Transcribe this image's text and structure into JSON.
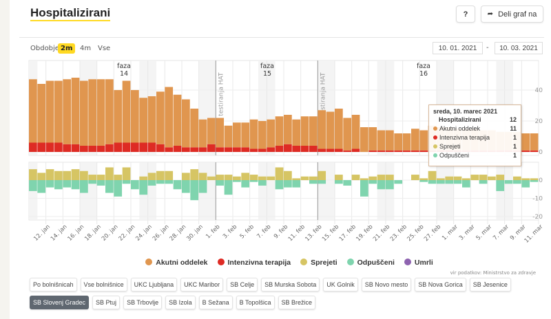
{
  "header": {
    "title": "Hospitalizirani",
    "help_label": "?",
    "share_label": "Deli graf na",
    "share_icon": "share-arrow-icon"
  },
  "period": {
    "label": "Obdobje",
    "options": [
      "2m",
      "4m",
      "Vse"
    ],
    "selected": "2m"
  },
  "date_range": {
    "from": "10. 01. 2021",
    "separator": "-",
    "to": "10. 03. 2021"
  },
  "colors": {
    "acute": "#e0964f",
    "icu": "#de2b24",
    "admitted": "#d6c564",
    "discharged": "#7fd4ae",
    "deceased": "#8e63b0",
    "accent": "#ffd922"
  },
  "chart_data": [
    {
      "type": "bar",
      "stacked": true,
      "x_start": "2021-01-10",
      "x_end": "2021-03-10",
      "y_ticks": [
        0,
        20,
        40
      ],
      "ylim": [
        0,
        50
      ],
      "axis_side": "right",
      "grid": true,
      "series": [
        {
          "name": "Akutni oddelek",
          "values": [
            41,
            38,
            40,
            40,
            42,
            43,
            42,
            43,
            43,
            42,
            34,
            40,
            34,
            29,
            30,
            34,
            39,
            33,
            31,
            25,
            18,
            17,
            19,
            14,
            16,
            16,
            19,
            18,
            18,
            19,
            19,
            17,
            19,
            19,
            25,
            24,
            26,
            21,
            22,
            16,
            15,
            13,
            13,
            11,
            11,
            14,
            13,
            16,
            15,
            15,
            14,
            14,
            14,
            13,
            13,
            12,
            12,
            12,
            11,
            11
          ]
        },
        {
          "name": "Intenzivna terapija",
          "values": [
            6,
            6,
            6,
            6,
            5,
            5,
            4,
            4,
            4,
            5,
            6,
            6,
            6,
            6,
            6,
            5,
            3,
            4,
            3,
            3,
            3,
            5,
            3,
            3,
            3,
            3,
            2,
            2,
            3,
            4,
            5,
            4,
            4,
            4,
            2,
            2,
            2,
            1,
            2,
            0,
            1,
            1,
            1,
            1,
            1,
            1,
            1,
            1,
            1,
            1,
            1,
            1,
            1,
            1,
            1,
            1,
            1,
            1,
            1,
            1
          ]
        }
      ]
    },
    {
      "type": "bar",
      "y_ticks": [
        0,
        -10,
        -20
      ],
      "ylim": [
        -20,
        10
      ],
      "axis_side": "right",
      "grid": true,
      "series": [
        {
          "name": "Sprejeti",
          "direction": "up",
          "values": [
            6,
            4,
            6,
            5,
            5,
            6,
            5,
            3,
            3,
            7,
            3,
            7,
            0,
            2,
            4,
            5,
            5,
            0,
            4,
            6,
            4,
            2,
            3,
            3,
            2,
            4,
            3,
            2,
            2,
            7,
            5,
            1,
            2,
            2,
            5,
            0,
            3,
            0,
            3,
            1,
            2,
            3,
            3,
            0,
            0,
            3,
            1,
            5,
            1,
            2,
            2,
            1,
            3,
            3,
            2,
            3,
            0,
            2,
            1,
            1
          ]
        },
        {
          "name": "Odpuščeni",
          "direction": "down",
          "values": [
            6,
            7,
            4,
            5,
            4,
            5,
            7,
            2,
            3,
            7,
            9,
            2,
            5,
            8,
            3,
            2,
            2,
            5,
            7,
            11,
            7,
            0,
            3,
            8,
            1,
            4,
            1,
            3,
            0,
            5,
            4,
            4,
            0,
            2,
            2,
            0,
            2,
            3,
            0,
            9,
            2,
            5,
            5,
            2,
            0,
            0,
            1,
            2,
            2,
            2,
            2,
            4,
            0,
            2,
            0,
            6,
            2,
            2,
            4,
            1
          ]
        }
      ]
    }
  ],
  "x_ticks": [
    "12. jan",
    "14. jan",
    "16. jan",
    "18. jan",
    "20. jan",
    "22. jan",
    "24. jan",
    "26. jan",
    "28. jan",
    "30. jan",
    "1. feb",
    "3. feb",
    "5. feb",
    "7. feb",
    "9. feb",
    "11. feb",
    "13. feb",
    "15. feb",
    "17. feb",
    "19. feb",
    "21. feb",
    "23. feb",
    "25. feb",
    "27. feb",
    "1. mar",
    "3. mar",
    "5. mar",
    "7. mar",
    "9. mar",
    "11. mar"
  ],
  "phases": [
    {
      "label": "faza",
      "number": "14"
    },
    {
      "label": "faza",
      "number": "15"
    },
    {
      "label": "faza",
      "number": "16"
    }
  ],
  "annotations": [
    {
      "text": "em testiranja HAT",
      "date": "1. feb"
    },
    {
      "text": "em testiranja HAT",
      "date": "13. feb"
    }
  ],
  "tooltip": {
    "date": "sreda, 10. marec 2021",
    "total_label": "Hospitalizirani",
    "total": "12",
    "rows": [
      {
        "label": "Akutni oddelek",
        "value": "11"
      },
      {
        "label": "Intenzivna terapija",
        "value": "1"
      },
      {
        "label": "Sprejeti",
        "value": "1"
      },
      {
        "label": "Odpuščeni",
        "value": "1"
      }
    ]
  },
  "legend": [
    "Akutni oddelek",
    "Intenzivna terapija",
    "Sprejeti",
    "Odpuščeni",
    "Umrli"
  ],
  "source": "vir podatkov: Ministrstvo za zdravje",
  "hospitals_row1": [
    "Po bolnišnicah",
    "Vse bolnišnice",
    "UKC Ljubljana",
    "UKC Maribor",
    "SB Celje",
    "SB Murska Sobota",
    "UK Golnik",
    "SB Novo mesto",
    "SB Nova Gorica",
    "SB Jesenice"
  ],
  "hospitals_row2": [
    "SB Slovenj Gradec",
    "SB Ptuj",
    "SB Trbovlje",
    "SB Izola",
    "B Sežana",
    "B Topolšica",
    "SB Brežice"
  ],
  "selected_hospital": "SB Slovenj Gradec"
}
